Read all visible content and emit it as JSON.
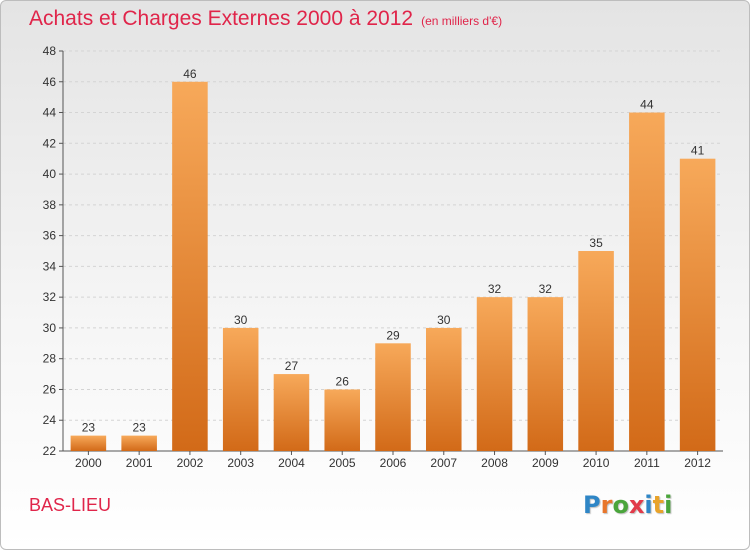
{
  "header": {
    "title": "Achats et Charges Externes 2000 à 2012",
    "unit": "(en milliers d'€)"
  },
  "footer": {
    "commune": "BAS-LIEU",
    "logo_letters": [
      "P",
      "r",
      "o",
      "x",
      "i",
      "t",
      "i"
    ],
    "logo_colors": [
      "#2f86c6",
      "#e8762b",
      "#4aa53b",
      "#e23a4a",
      "#2f86c6",
      "#e8a32b",
      "#4aa53b"
    ]
  },
  "chart_data": {
    "type": "bar",
    "categories": [
      "2000",
      "2001",
      "2002",
      "2003",
      "2004",
      "2005",
      "2006",
      "2007",
      "2008",
      "2009",
      "2010",
      "2011",
      "2012"
    ],
    "values": [
      23,
      23,
      46,
      30,
      27,
      26,
      29,
      30,
      32,
      32,
      35,
      44,
      41
    ],
    "ylim": [
      22,
      48
    ],
    "yticks": [
      22,
      24,
      26,
      28,
      30,
      32,
      34,
      36,
      38,
      40,
      42,
      44,
      46,
      48
    ],
    "grid": true,
    "bar_color_top": "#f7a95a",
    "bar_color_bottom": "#d26a18"
  }
}
